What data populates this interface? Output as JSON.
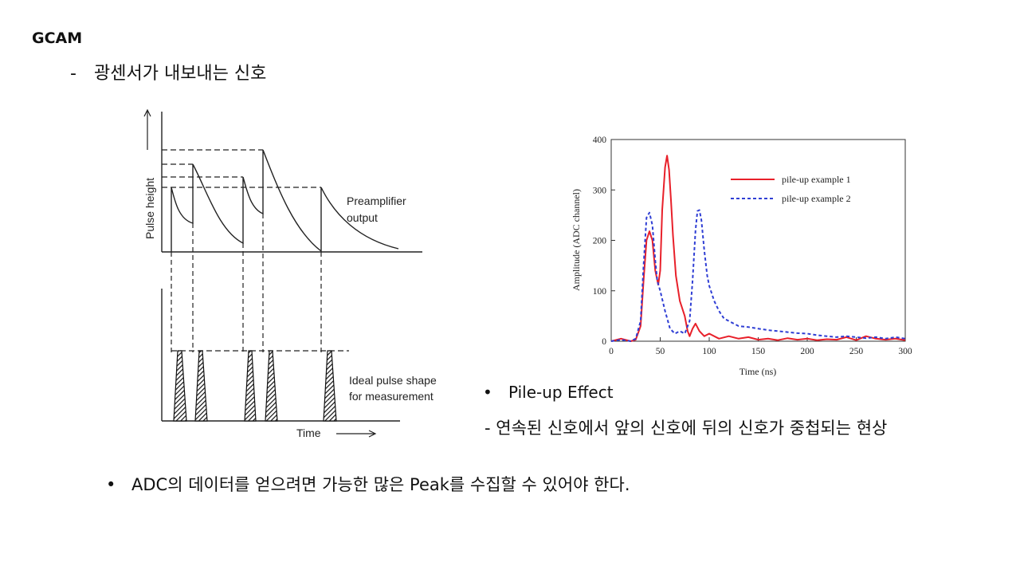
{
  "slide": {
    "title": "GCAM",
    "sub_bullet_marker": "-",
    "sub_bullet": "광센서가 내보내는 신호"
  },
  "diagram": {
    "y_axis_label": "Pulse height",
    "x_axis_label": "Time",
    "top_label_line1": "Preamplifier",
    "top_label_line2": "output",
    "bottom_label_line1": "Ideal pulse shape",
    "bottom_label_line2": "for measurement"
  },
  "chart_data": {
    "type": "line",
    "title": "",
    "xlabel": "Time (ns)",
    "ylabel": "Amplitude (ADC channel)",
    "xlim": [
      0,
      300
    ],
    "ylim": [
      0,
      400
    ],
    "xticks": [
      0,
      50,
      100,
      150,
      200,
      250,
      300
    ],
    "yticks": [
      0,
      100,
      200,
      300,
      400
    ],
    "grid": false,
    "legend_position": "top-right",
    "series": [
      {
        "name": "pile-up example 1",
        "color": "#e8202a",
        "style": "solid",
        "x": [
          0,
          10,
          20,
          25,
          30,
          33,
          36,
          39,
          42,
          45,
          48,
          50,
          52,
          55,
          57,
          59,
          61,
          63,
          66,
          70,
          75,
          78,
          80,
          83,
          86,
          90,
          95,
          100,
          110,
          120,
          130,
          140,
          150,
          160,
          170,
          180,
          190,
          200,
          210,
          220,
          230,
          240,
          250,
          260,
          270,
          280,
          290,
          300
        ],
        "y": [
          0,
          5,
          0,
          3,
          30,
          120,
          200,
          218,
          200,
          140,
          112,
          140,
          260,
          345,
          368,
          340,
          280,
          210,
          130,
          80,
          50,
          20,
          10,
          25,
          35,
          20,
          10,
          15,
          5,
          10,
          5,
          8,
          3,
          5,
          2,
          6,
          3,
          5,
          2,
          4,
          3,
          8,
          2,
          10,
          5,
          3,
          5,
          2
        ]
      },
      {
        "name": "pile-up example 2",
        "color": "#2f3ed4",
        "style": "dashed",
        "x": [
          0,
          10,
          20,
          25,
          30,
          33,
          36,
          39,
          42,
          45,
          47,
          50,
          55,
          60,
          65,
          70,
          75,
          80,
          83,
          86,
          88,
          90,
          92,
          95,
          98,
          100,
          105,
          110,
          115,
          120,
          125,
          130,
          140,
          150,
          160,
          170,
          180,
          190,
          200,
          210,
          220,
          230,
          240,
          250,
          260,
          270,
          280,
          290,
          300
        ],
        "y": [
          0,
          3,
          0,
          5,
          40,
          150,
          245,
          255,
          230,
          160,
          120,
          100,
          60,
          25,
          15,
          20,
          15,
          40,
          120,
          220,
          258,
          260,
          240,
          180,
          130,
          110,
          80,
          60,
          45,
          40,
          35,
          30,
          28,
          25,
          22,
          20,
          18,
          16,
          15,
          12,
          10,
          8,
          10,
          8,
          6,
          8,
          5,
          8,
          5
        ]
      }
    ]
  },
  "bullets": {
    "pileup_marker": "•",
    "pileup_title": "Pile-up Effect",
    "pileup_desc_marker": "-",
    "pileup_desc": "연속된 신호에서 앞의 신호에 뒤의 신호가 중첩되는 현상",
    "adc_marker": "•",
    "adc_text": "ADC의 데이터를 얻으려면 가능한 많은 Peak를 수집할 수 있어야 한다."
  }
}
